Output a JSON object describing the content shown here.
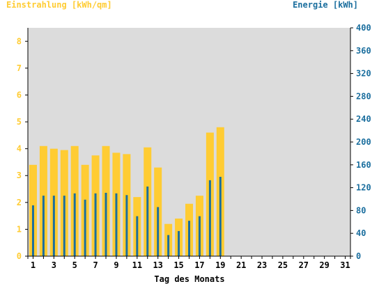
{
  "colors": {
    "background": "#ffffff",
    "plot_bg": "#dcdcdc",
    "radiation": "#ffcc33",
    "energy": "#1a6e9e",
    "left_axis_text": "#ffcc33",
    "right_axis_text": "#1a6e9e",
    "axis_line": "#000000"
  },
  "chart_data": {
    "type": "bar",
    "title_left": "Einstrahlung [kWh/qm]",
    "title_right": "Energie [kWh]",
    "xlabel": "Tag des Monats",
    "x": [
      1,
      2,
      3,
      4,
      5,
      6,
      7,
      8,
      9,
      10,
      11,
      12,
      13,
      14,
      15,
      16,
      17,
      18,
      19,
      20,
      21,
      22,
      23,
      24,
      25,
      26,
      27,
      28,
      29,
      30,
      31
    ],
    "x_ticks": [
      1,
      3,
      5,
      7,
      9,
      11,
      13,
      15,
      17,
      19,
      21,
      23,
      25,
      27,
      29,
      31
    ],
    "ylim_left": [
      0,
      8.5
    ],
    "yticks_left": [
      0,
      1,
      2,
      3,
      4,
      5,
      6,
      7,
      8
    ],
    "ylim_right": [
      0,
      400
    ],
    "yticks_right": [
      0,
      40,
      80,
      120,
      160,
      200,
      240,
      280,
      320,
      360,
      400
    ],
    "grid": false,
    "series": [
      {
        "name": "Einstrahlung [kWh/qm]",
        "axis": "left",
        "values": [
          3.4,
          4.1,
          4.0,
          3.95,
          4.1,
          3.4,
          3.75,
          4.1,
          3.85,
          3.8,
          2.2,
          4.05,
          3.3,
          1.2,
          1.4,
          1.95,
          2.25,
          4.6,
          4.8,
          null,
          null,
          null,
          null,
          null,
          null,
          null,
          null,
          null,
          null,
          null,
          null
        ]
      },
      {
        "name": "Energie [kWh]",
        "axis": "right",
        "values": [
          89,
          106,
          106,
          106,
          110,
          99,
          110,
          111,
          110,
          107,
          70,
          122,
          86,
          37,
          44,
          62,
          70,
          133,
          139,
          null,
          null,
          null,
          null,
          null,
          null,
          null,
          null,
          null,
          null,
          null,
          null
        ]
      }
    ]
  }
}
